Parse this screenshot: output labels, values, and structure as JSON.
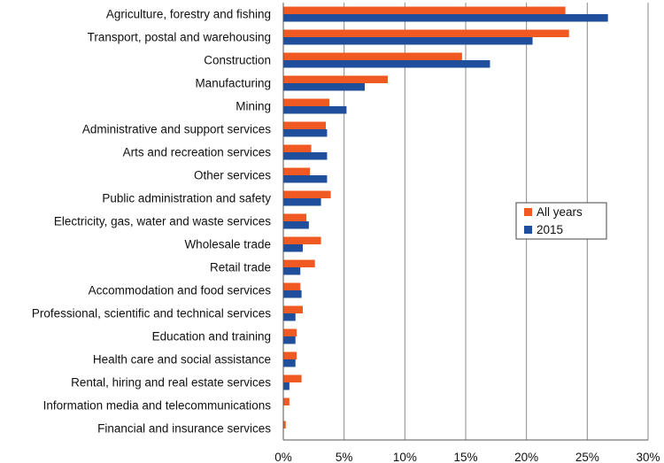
{
  "chart_data": {
    "type": "bar",
    "orientation": "horizontal",
    "title": "",
    "xlabel": "",
    "ylabel": "",
    "xlim": [
      0,
      30
    ],
    "x_ticks": [
      "0%",
      "5%",
      "10%",
      "15%",
      "20%",
      "25%",
      "30%"
    ],
    "grid": "vertical",
    "legend_position": "right",
    "categories": [
      "Agriculture, forestry and fishing",
      "Transport, postal and warehousing",
      "Construction",
      "Manufacturing",
      "Mining",
      "Administrative and support services",
      "Arts and recreation services",
      "Other services",
      "Public administration and safety",
      "Electricity, gas, water and waste services",
      "Wholesale trade",
      "Retail trade",
      "Accommodation and food services",
      "Professional, scientific and technical services",
      "Education and training",
      "Health care and social assistance",
      "Rental, hiring and real estate services",
      "Information media and telecommunications",
      "Financial and insurance services"
    ],
    "series": [
      {
        "name": "All years",
        "color": "#f05a22",
        "values": [
          23.2,
          23.5,
          14.7,
          8.6,
          3.8,
          3.5,
          2.3,
          2.2,
          3.9,
          1.9,
          3.1,
          2.6,
          1.4,
          1.6,
          1.1,
          1.1,
          1.5,
          0.5,
          0.2
        ]
      },
      {
        "name": "2015",
        "color": "#1f4e9c",
        "values": [
          26.7,
          20.5,
          17.0,
          6.7,
          5.2,
          3.6,
          3.6,
          3.6,
          3.1,
          2.1,
          1.6,
          1.4,
          1.5,
          1.0,
          1.0,
          1.0,
          0.5,
          0.0,
          0.0
        ]
      }
    ]
  }
}
